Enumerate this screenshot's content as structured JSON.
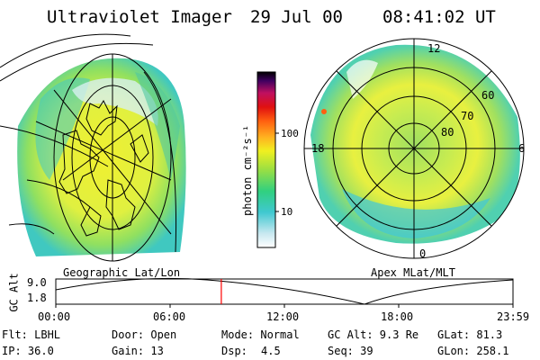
{
  "header": {
    "instrument": "Ultraviolet Imager",
    "date": "29 Jul 00",
    "time": "08:41:02 UT"
  },
  "left_panel": {
    "caption": "Geographic Lat/Lon"
  },
  "right_panel": {
    "caption": "Apex MLat/MLT",
    "mlt_labels": [
      "12",
      "18",
      "6",
      "0"
    ],
    "lat_labels": [
      "60",
      "70",
      "80"
    ]
  },
  "colorbar": {
    "unit": "photon cm⁻²s⁻¹",
    "ticks": [
      "100",
      "10"
    ]
  },
  "altitude_plot": {
    "ylabel": "GC Alt",
    "yticks": [
      "9.0",
      "1.8"
    ],
    "xticks": [
      "00:00",
      "06:00",
      "12:00",
      "18:00",
      "23:59"
    ],
    "current_time_fraction": 0.362,
    "marker_color": "#ff0000"
  },
  "status": {
    "flt": "Flt: LBHL",
    "ip": "IP: 36.0",
    "door": "Door: Open",
    "gain": "Gain: 13",
    "mode": "Mode: Normal",
    "dsp_label": "Dsp:",
    "dsp_value": "4.5",
    "gcalt": "GC Alt: 9.3 Re",
    "seq": "Seq: 39",
    "glat": "GLat:  81.3",
    "glon": "GLon: 258.1"
  }
}
